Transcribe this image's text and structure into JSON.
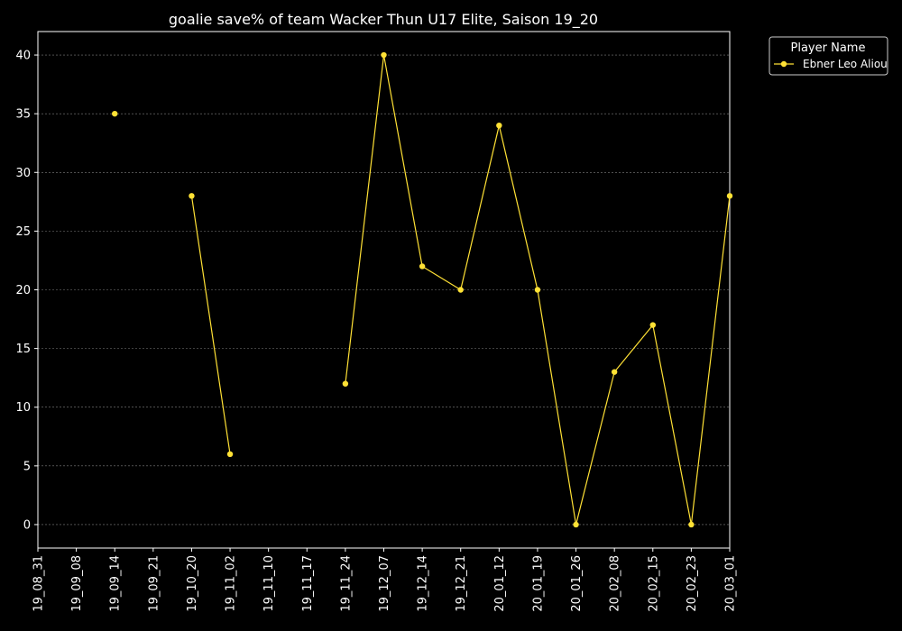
{
  "chart_data": {
    "type": "line",
    "title": "goalie save% of team Wacker Thun U17 Elite, Saison 19_20",
    "xlabel": "",
    "ylabel": "",
    "categories": [
      "19_08_31",
      "19_09_08",
      "19_09_14",
      "19_09_21",
      "19_10_20",
      "19_11_02",
      "19_11_10",
      "19_11_17",
      "19_11_24",
      "19_12_07",
      "19_12_14",
      "19_12_21",
      "20_01_12",
      "20_01_19",
      "20_01_26",
      "20_02_08",
      "20_02_15",
      "20_02_23",
      "20_03_01"
    ],
    "ylim": [
      -2,
      42
    ],
    "yticks": [
      0,
      5,
      10,
      15,
      20,
      25,
      30,
      35,
      40
    ],
    "grid": true,
    "legend": {
      "title": "Player Name",
      "placement": "top-right-outside"
    },
    "series": [
      {
        "name": "Ebner Leo Aliou",
        "color": "#ffe135",
        "values": [
          null,
          null,
          35,
          null,
          28,
          6,
          null,
          null,
          12,
          40,
          22,
          20,
          34,
          20,
          0,
          13,
          17,
          0,
          28
        ]
      }
    ]
  },
  "colors": {
    "background": "#000000",
    "axes": "#ffffff",
    "grid": "#808080"
  }
}
